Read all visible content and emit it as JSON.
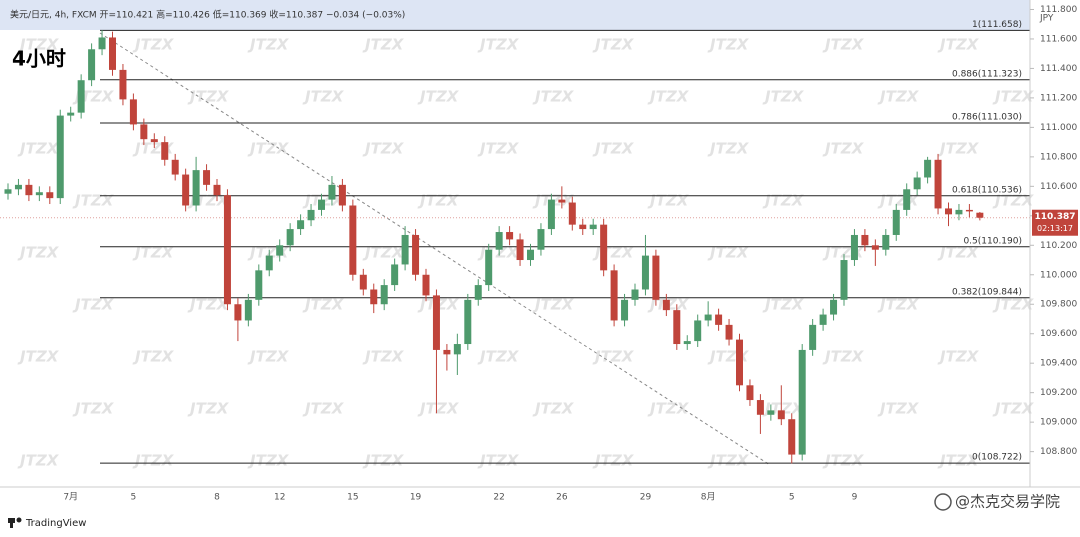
{
  "chart_data": {
    "type": "candlestick",
    "header": "美元/日元, 4h, FXCM  开=110.421  高=110.426  低=110.369  收=110.387  −0.034 (−0.03%)",
    "title": "4小时",
    "currency": "JPY",
    "watermark": "JTZX",
    "brand": "TradingView",
    "credit": "@杰克交易学院",
    "countdown": "02:13:17",
    "last_price": 110.387,
    "up_color": "#4e9a6c",
    "down_color": "#c0443b",
    "categories": [
      null,
      null,
      null,
      null,
      null,
      null,
      "7月",
      null,
      null,
      null,
      null,
      null,
      "5",
      null,
      null,
      null,
      null,
      null,
      null,
      null,
      "8",
      null,
      null,
      null,
      null,
      null,
      "12",
      null,
      null,
      null,
      null,
      null,
      null,
      "15",
      null,
      null,
      null,
      null,
      null,
      "19",
      null,
      null,
      null,
      null,
      null,
      null,
      null,
      "22",
      null,
      null,
      null,
      null,
      null,
      "26",
      null,
      null,
      null,
      null,
      null,
      null,
      null,
      "29",
      null,
      null,
      null,
      null,
      null,
      "8月",
      null,
      null,
      null,
      null,
      null,
      null,
      null,
      "5",
      null,
      null,
      null,
      null,
      null,
      "9",
      null,
      null,
      null,
      null,
      null,
      null,
      null,
      null,
      null,
      null,
      null,
      null
    ],
    "open": [
      110.55,
      110.58,
      110.61,
      110.54,
      110.56,
      110.52,
      111.08,
      111.1,
      111.32,
      111.53,
      111.61,
      111.39,
      111.19,
      111.02,
      110.92,
      110.9,
      110.78,
      110.68,
      110.47,
      110.71,
      110.61,
      110.54,
      109.8,
      109.69,
      109.83,
      110.03,
      110.13,
      110.2,
      110.31,
      110.37,
      110.44,
      110.51,
      110.61,
      110.47,
      110.0,
      109.9,
      109.8,
      109.93,
      110.07,
      110.27,
      110.0,
      109.86,
      109.49,
      109.46,
      109.53,
      109.83,
      109.93,
      110.17,
      110.29,
      110.24,
      110.1,
      110.17,
      110.31,
      110.51,
      110.49,
      110.34,
      110.31,
      110.34,
      110.03,
      109.69,
      109.83,
      109.9,
      110.13,
      109.83,
      109.76,
      109.53,
      109.55,
      109.69,
      109.73,
      109.66,
      109.56,
      109.25,
      109.15,
      109.05,
      109.08,
      109.02,
      108.78,
      109.49,
      109.66,
      109.73,
      109.83,
      110.1,
      110.27,
      110.2,
      110.17,
      110.27,
      110.44,
      110.58,
      110.66,
      110.78,
      110.45,
      110.41,
      110.44,
      110.421
    ],
    "high": [
      110.62,
      110.65,
      110.65,
      110.6,
      110.6,
      111.12,
      111.14,
      111.36,
      111.57,
      111.66,
      111.65,
      111.43,
      111.23,
      111.06,
      110.96,
      110.94,
      110.82,
      110.72,
      110.8,
      110.75,
      110.65,
      110.58,
      109.84,
      109.87,
      110.07,
      110.17,
      110.24,
      110.35,
      110.41,
      110.48,
      110.55,
      110.67,
      110.65,
      110.51,
      110.04,
      109.94,
      109.97,
      110.11,
      110.33,
      110.31,
      110.04,
      109.9,
      109.53,
      109.6,
      109.87,
      109.97,
      110.21,
      110.33,
      110.33,
      110.28,
      110.21,
      110.35,
      110.55,
      110.6,
      110.53,
      110.38,
      110.38,
      110.38,
      110.07,
      109.87,
      109.94,
      110.27,
      110.17,
      109.87,
      109.8,
      109.59,
      109.73,
      109.82,
      109.77,
      109.7,
      109.6,
      109.29,
      109.19,
      109.12,
      109.25,
      109.06,
      109.53,
      109.7,
      109.77,
      109.87,
      110.14,
      110.31,
      110.31,
      110.24,
      110.31,
      110.48,
      110.62,
      110.7,
      110.8,
      110.82,
      110.49,
      110.48,
      110.48,
      110.426
    ],
    "low": [
      110.51,
      110.54,
      110.5,
      110.5,
      110.48,
      110.48,
      111.04,
      111.06,
      111.28,
      111.49,
      111.35,
      111.15,
      110.98,
      110.88,
      110.86,
      110.74,
      110.64,
      110.43,
      110.43,
      110.57,
      110.5,
      109.76,
      109.55,
      109.65,
      109.79,
      109.99,
      110.09,
      110.16,
      110.27,
      110.33,
      110.4,
      110.47,
      110.43,
      109.96,
      109.86,
      109.74,
      109.76,
      109.89,
      110.03,
      109.96,
      109.82,
      109.06,
      109.35,
      109.32,
      109.49,
      109.79,
      109.89,
      110.13,
      110.2,
      110.06,
      110.06,
      110.13,
      110.27,
      110.45,
      110.3,
      110.27,
      110.27,
      109.99,
      109.65,
      109.65,
      109.79,
      109.86,
      109.79,
      109.72,
      109.49,
      109.49,
      109.51,
      109.65,
      109.62,
      109.52,
      109.21,
      109.11,
      108.92,
      109.01,
      108.98,
      108.72,
      108.74,
      109.45,
      109.62,
      109.69,
      109.79,
      110.06,
      110.16,
      110.06,
      110.13,
      110.23,
      110.4,
      110.54,
      110.62,
      110.41,
      110.33,
      110.37,
      110.39,
      110.369
    ],
    "close": [
      110.58,
      110.61,
      110.54,
      110.56,
      110.52,
      111.08,
      111.1,
      111.32,
      111.53,
      111.61,
      111.39,
      111.19,
      111.02,
      110.92,
      110.9,
      110.78,
      110.68,
      110.47,
      110.71,
      110.61,
      110.54,
      109.8,
      109.69,
      109.83,
      110.03,
      110.13,
      110.2,
      110.31,
      110.37,
      110.44,
      110.51,
      110.61,
      110.47,
      110.0,
      109.9,
      109.8,
      109.93,
      110.07,
      110.27,
      110.0,
      109.86,
      109.49,
      109.46,
      109.53,
      109.83,
      109.93,
      110.17,
      110.29,
      110.24,
      110.1,
      110.17,
      110.31,
      110.51,
      110.49,
      110.34,
      110.31,
      110.34,
      110.03,
      109.69,
      109.83,
      109.9,
      110.13,
      109.83,
      109.76,
      109.53,
      109.55,
      109.69,
      109.73,
      109.66,
      109.56,
      109.25,
      109.15,
      109.05,
      109.08,
      109.02,
      108.78,
      109.49,
      109.66,
      109.73,
      109.83,
      110.1,
      110.27,
      110.2,
      110.17,
      110.27,
      110.44,
      110.58,
      110.66,
      110.78,
      110.45,
      110.41,
      110.44,
      110.43,
      110.387
    ],
    "levels": [
      {
        "value": 111.658,
        "label": "1(111.658)"
      },
      {
        "value": 111.323,
        "label": "0.886(111.323)"
      },
      {
        "value": 111.03,
        "label": "0.786(111.030)"
      },
      {
        "value": 110.536,
        "label": "0.618(110.536)"
      },
      {
        "value": 110.19,
        "label": "0.5(110.190)"
      },
      {
        "value": 109.844,
        "label": "0.382(109.844)"
      },
      {
        "value": 108.722,
        "label": "0(108.722)"
      }
    ],
    "ylim": [
      108.56,
      111.81
    ],
    "yticks": [
      {
        "value": 111.8,
        "label": "111.800"
      },
      {
        "value": 111.6,
        "label": "111.600"
      },
      {
        "value": 111.4,
        "label": "111.400"
      },
      {
        "value": 111.2,
        "label": "111.200"
      },
      {
        "value": 111.0,
        "label": "111.000"
      },
      {
        "value": 110.8,
        "label": "110.800"
      },
      {
        "value": 110.6,
        "label": "110.600"
      },
      {
        "value": 110.4,
        "label": "110.400"
      },
      {
        "value": 110.2,
        "label": "110.200"
      },
      {
        "value": 110.0,
        "label": "110.000"
      },
      {
        "value": 109.8,
        "label": "109.800"
      },
      {
        "value": 109.6,
        "label": "109.600"
      },
      {
        "value": 109.4,
        "label": "109.400"
      },
      {
        "value": 109.2,
        "label": "109.200"
      },
      {
        "value": 109.0,
        "label": "109.000"
      },
      {
        "value": 108.8,
        "label": "108.800"
      }
    ]
  }
}
